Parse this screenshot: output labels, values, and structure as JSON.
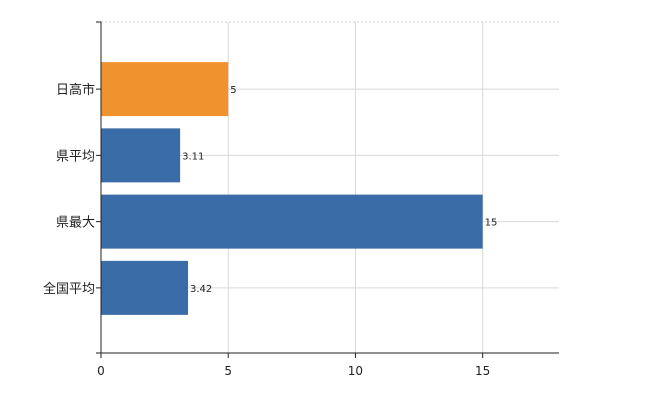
{
  "chart_data": {
    "type": "bar",
    "orientation": "horizontal",
    "categories": [
      "日高市",
      "県平均",
      "県最大",
      "全国平均"
    ],
    "values": [
      5,
      3.11,
      15,
      3.42
    ],
    "value_labels": [
      "5",
      "3.11",
      "15",
      "3.42"
    ],
    "bar_colors": [
      "#f0922e",
      "#3a6ca8",
      "#3a6ca8",
      "#3a6ca8"
    ],
    "xlim": [
      0,
      18
    ],
    "x_ticks": [
      0,
      5,
      10,
      15
    ],
    "x_tick_labels": [
      "0",
      "5",
      "10",
      "15"
    ],
    "grid": true,
    "title": "",
    "xlabel": "",
    "ylabel": ""
  }
}
